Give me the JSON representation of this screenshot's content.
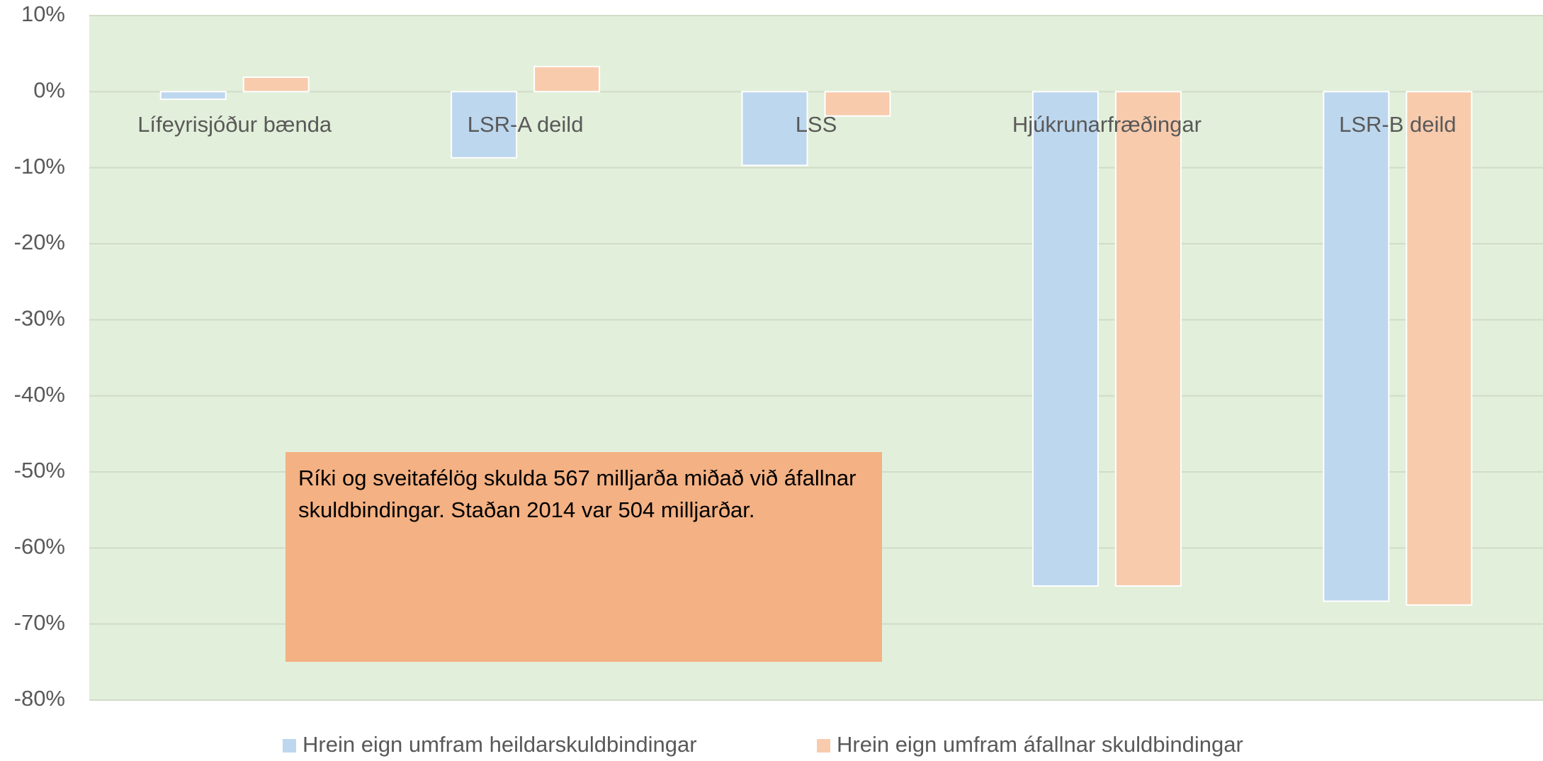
{
  "chart_data": {
    "type": "bar",
    "categories": [
      "Lífeyrisjóður bænda",
      "LSR-A deild",
      "LSS",
      "Hjúkrunarfræðingar",
      "LSR-B deild"
    ],
    "series": [
      {
        "name": "Hrein eign umfram heildarskuldbindingar",
        "color": "#bdd7ee",
        "values": [
          -1,
          -8.7,
          -9.7,
          -65,
          -67
        ]
      },
      {
        "name": "Hrein eign umfram áfallnar skuldbindingar",
        "color": "#f8cbad",
        "values": [
          1.9,
          3.3,
          -3.2,
          -65,
          -67.5
        ]
      }
    ],
    "ylim": [
      -80,
      10
    ],
    "yticks": [
      {
        "value": -80,
        "label": "-80%"
      },
      {
        "value": -70,
        "label": "-70%"
      },
      {
        "value": -60,
        "label": "-60%"
      },
      {
        "value": -50,
        "label": "-50%"
      },
      {
        "value": -40,
        "label": "-40%"
      },
      {
        "value": -30,
        "label": "-30%"
      },
      {
        "value": -20,
        "label": "-20%"
      },
      {
        "value": -10,
        "label": "-10%"
      },
      {
        "value": 0,
        "label": "0%"
      },
      {
        "value": 10,
        "label": "10%"
      }
    ],
    "grid": true,
    "plot_background": "#e2efda",
    "legend": "bottom",
    "annotation": "Ríki og sveitafélög skulda 567 milljarða miðað við áfallnar skuldbindingar. Staðan 2014 var 504 milljarðar."
  }
}
